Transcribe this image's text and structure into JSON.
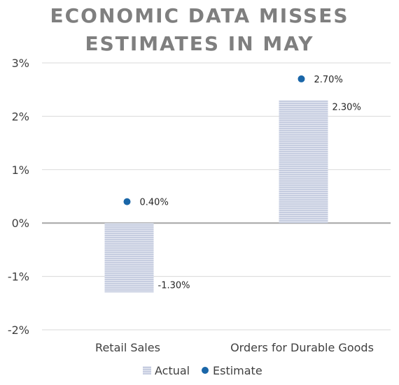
{
  "title": {
    "line1": "ECONOMIC DATA MISSES",
    "line2": "ESTIMATES IN MAY"
  },
  "colors": {
    "actual": "#c6cde0",
    "actual_stripe": "#ffffff",
    "estimate": "#1a66a8",
    "grid": "#d9d9d9",
    "zero_line": "#a6a6a6",
    "title": "#7f7f7f"
  },
  "chart_data": {
    "type": "bar",
    "title": "ECONOMIC DATA MISSES ESTIMATES IN MAY",
    "categories": [
      "Retail Sales",
      "Orders for Durable Goods"
    ],
    "series": [
      {
        "name": "Actual",
        "kind": "bar",
        "values": [
          -1.3,
          2.3
        ],
        "labels": [
          "-1.30%",
          "2.30%"
        ]
      },
      {
        "name": "Estimate",
        "kind": "marker",
        "values": [
          0.4,
          2.7
        ],
        "labels": [
          "0.40%",
          "2.70%"
        ]
      }
    ],
    "ylim": [
      -2,
      3
    ],
    "yticks": [
      3,
      2,
      1,
      0,
      -1,
      -2
    ],
    "ytick_labels": [
      "3%",
      "2%",
      "1%",
      "0%",
      "-1%",
      "-2%"
    ],
    "grid": true,
    "legend": "bottom"
  }
}
